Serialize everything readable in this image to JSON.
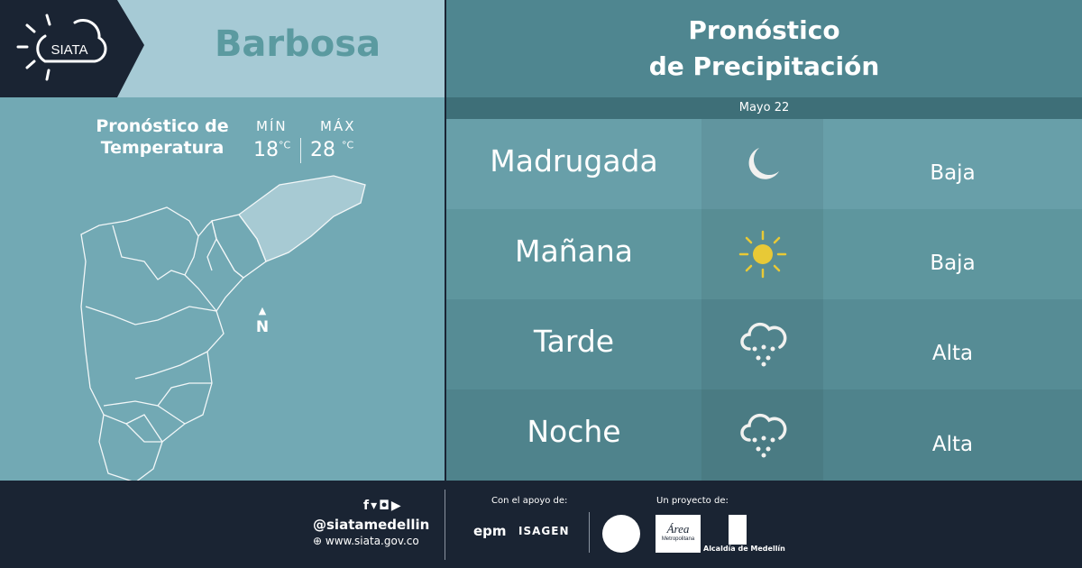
{
  "header": {
    "logo_text": "SIATA",
    "city": "Barbosa",
    "forecast_title_line1": "Pronóstico",
    "forecast_title_line2": "de Precipitación",
    "date": "Mayo 22"
  },
  "temperature": {
    "title_line1": "Pronóstico de",
    "title_line2": "Temperatura",
    "min_label": "MÍN",
    "max_label": "MÁX",
    "min": "18",
    "max": "28",
    "unit": "°C"
  },
  "map": {
    "north_label": "N"
  },
  "forecast": [
    {
      "period": "Madrugada",
      "icon": "moon-icon",
      "level": "Baja"
    },
    {
      "period": "Mañana",
      "icon": "sun-icon",
      "level": "Baja"
    },
    {
      "period": "Tarde",
      "icon": "rain-cloud-icon",
      "level": "Alta"
    },
    {
      "period": "Noche",
      "icon": "rain-cloud-icon",
      "level": "Alta"
    }
  ],
  "footer": {
    "handle": "@siatamedellin",
    "website": "www.siata.gov.co",
    "support_label": "Con el apoyo de:",
    "project_label": "Un proyecto de:",
    "sponsors": [
      "epm",
      "ISAGEN"
    ],
    "partners": [
      "Área Metropolitana",
      "Alcaldía de Medellín"
    ]
  },
  "colors": {
    "navy": "#1a2433",
    "sun": "#e8c936",
    "accent": "#5b9aa0"
  }
}
